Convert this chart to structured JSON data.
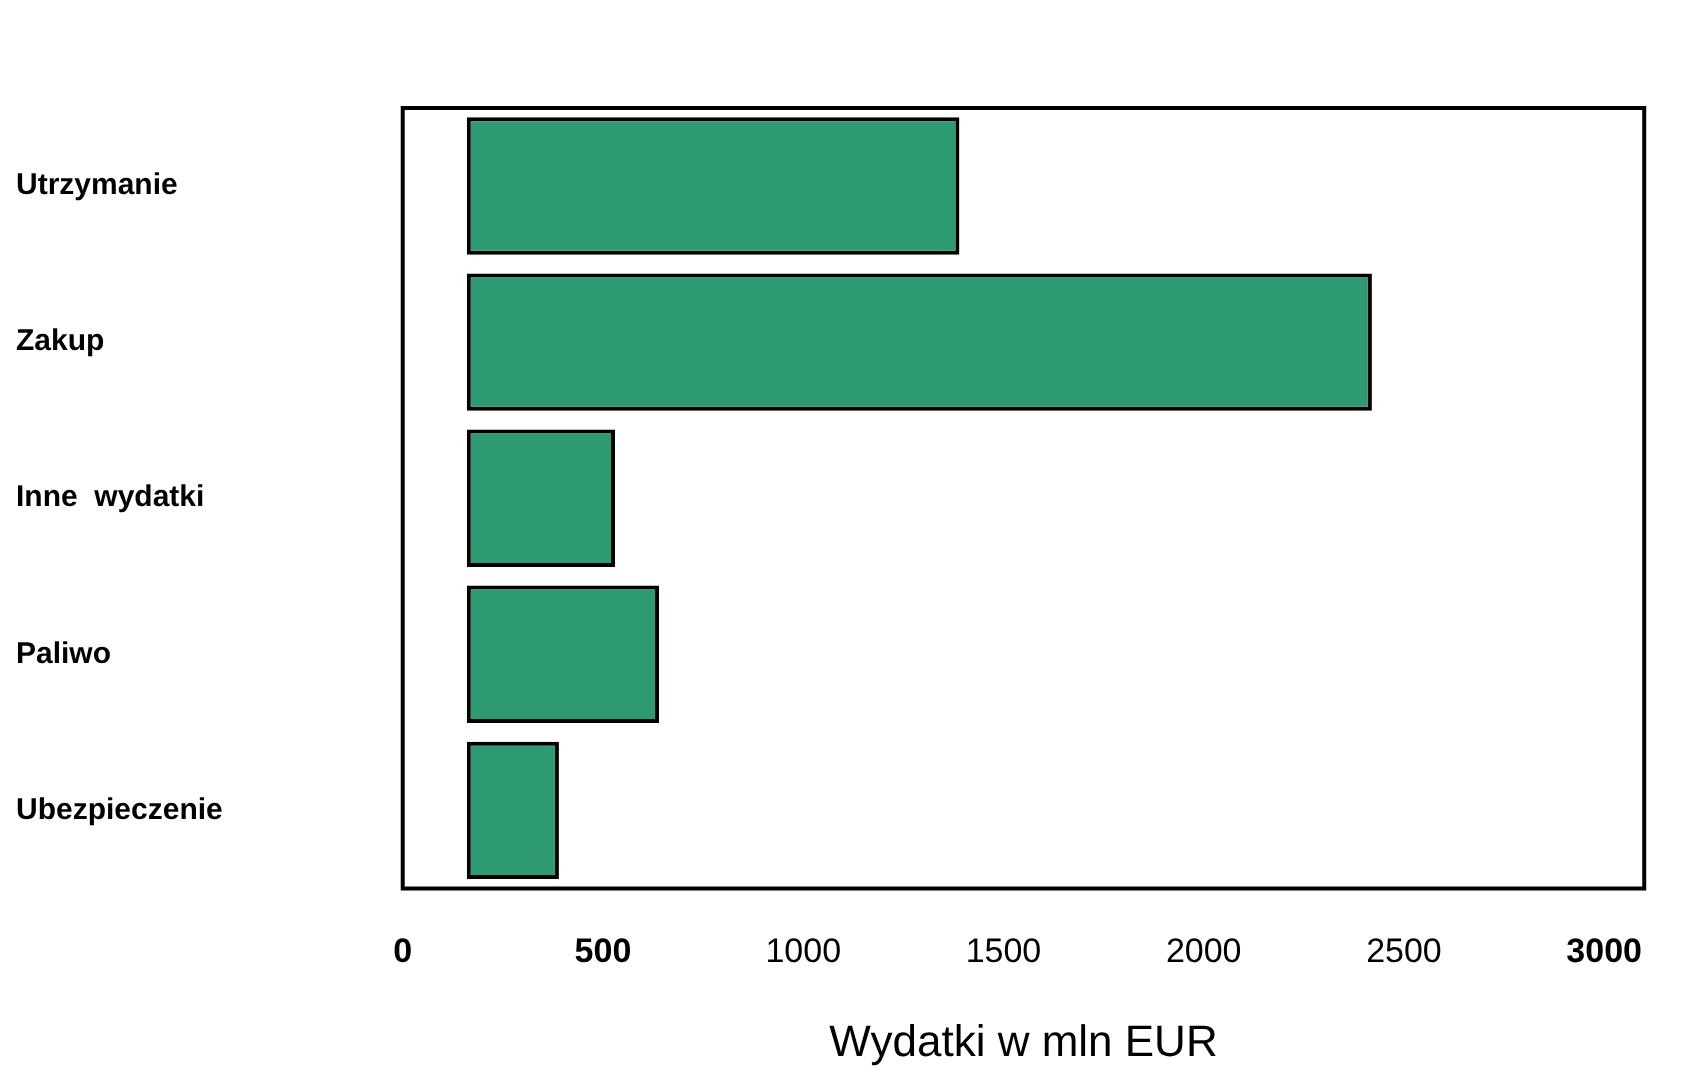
{
  "chart_data": {
    "type": "bar",
    "orientation": "horizontal",
    "xlabel": "Wydatki w mln EUR",
    "categories": [
      "Utrzymanie",
      "Zakup",
      "Inne  wydatki",
      "Paliwo",
      "Ubezpieczenie"
    ],
    "base": [
      160,
      160,
      160,
      160,
      160
    ],
    "values": [
      1230,
      2260,
      370,
      480,
      230
    ],
    "color": "#2e9a72",
    "xlim": [
      0,
      3100
    ],
    "xticks": [
      0,
      500,
      1000,
      1500,
      2000,
      2500,
      3000
    ],
    "grid": false,
    "legend": false
  }
}
